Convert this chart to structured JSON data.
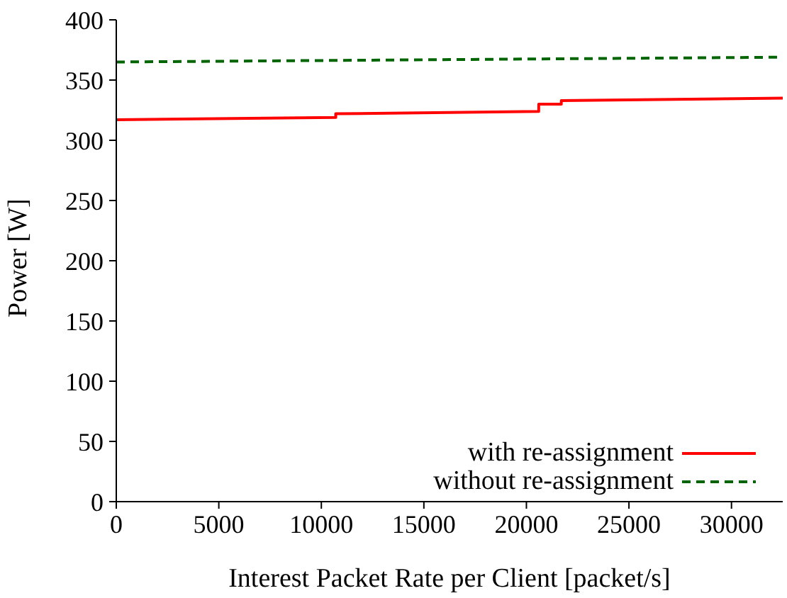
{
  "chart_data": {
    "type": "line",
    "xlabel": "Interest Packet Rate per Client [packet/s]",
    "ylabel": "Power [W]",
    "xlim": [
      0,
      32500
    ],
    "xticks": [
      0,
      5000,
      10000,
      15000,
      20000,
      25000,
      30000
    ],
    "ylim": [
      0,
      400
    ],
    "yticks": [
      0,
      50,
      100,
      150,
      200,
      250,
      300,
      350,
      400
    ],
    "grid": false,
    "legend": "bottom right",
    "marker": "none",
    "series": [
      {
        "name": "with re-assignment",
        "color": "#ff0000",
        "line_style": "solid",
        "x": [
          0,
          10700,
          10700,
          20600,
          20600,
          21700,
          21700,
          32500
        ],
        "values": [
          317,
          319,
          322,
          324,
          330,
          330,
          333,
          335
        ]
      },
      {
        "name": "without re-assignment",
        "color": "#006400",
        "line_style": "dashed",
        "x": [
          0,
          32500
        ],
        "values": [
          365,
          369
        ]
      }
    ]
  }
}
